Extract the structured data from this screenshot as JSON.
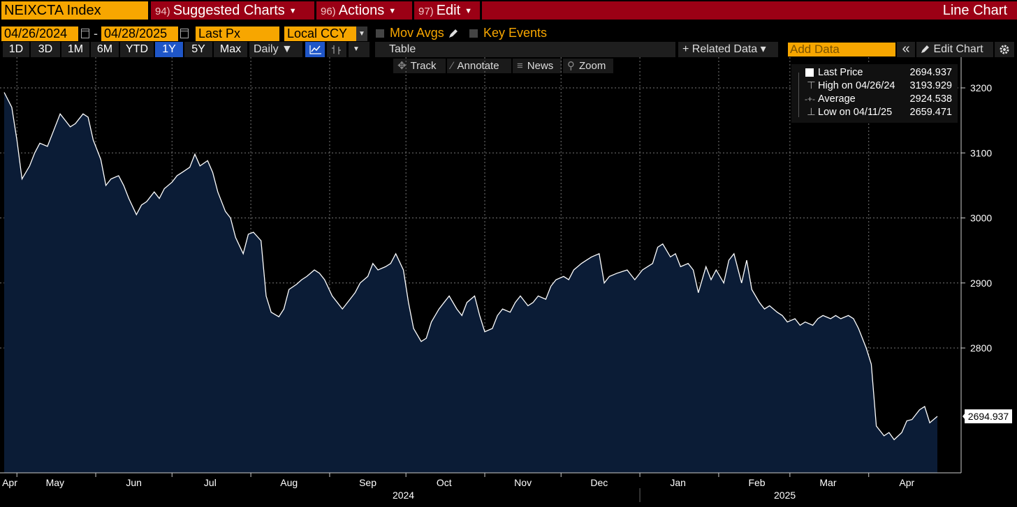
{
  "header": {
    "ticker": "NEIXCTA Index",
    "menus": [
      {
        "num": "94)",
        "label": "Suggested Charts"
      },
      {
        "num": "96)",
        "label": "Actions"
      },
      {
        "num": "97)",
        "label": "Edit"
      }
    ],
    "chart_mode": "Line Chart"
  },
  "controls": {
    "start_date": "04/26/2024",
    "end_date": "04/28/2025",
    "date_sep": "-",
    "field": "Last Px",
    "currency": "Local CCY",
    "mov_avgs": "Mov Avgs",
    "key_events": "Key Events"
  },
  "ranges": [
    "1D",
    "3D",
    "1M",
    "6M",
    "YTD",
    "1Y",
    "5Y",
    "Max"
  ],
  "selected_range": "1Y",
  "toolbar": {
    "frequency": "Daily ▼",
    "table": "Table",
    "related_data": "+ Related Data ▾",
    "add_data_placeholder": "Add Data",
    "collapse": "«",
    "edit_chart": "Edit Chart",
    "settings_icon": "gear-icon"
  },
  "chart_tools": [
    "Track",
    "Annotate",
    "News",
    "Zoom"
  ],
  "legend": {
    "last_price": {
      "label": "Last Price",
      "value": "2694.937"
    },
    "high": {
      "label": "High on 04/26/24",
      "value": "3193.929"
    },
    "average": {
      "label": "Average",
      "value": "2924.538"
    },
    "low": {
      "label": "Low on 04/11/25",
      "value": "2659.471"
    }
  },
  "last_value_label": "2694.937",
  "colors": {
    "ticker_bg": "#f7a600",
    "menu_bg": "#9b0015",
    "area_fill": "#0b1c36",
    "line": "#ffffff",
    "selected": "#1f56c8"
  },
  "chart_data": {
    "type": "area",
    "title": "",
    "xlabel": "",
    "ylabel": "",
    "ylim": [
      2630,
      3240
    ],
    "yticks": [
      2800,
      2900,
      3000,
      3100,
      3200
    ],
    "xlim": [
      "2024-04-26",
      "2025-04-28"
    ],
    "month_labels": [
      "Apr",
      "May",
      "Jun",
      "Jul",
      "Aug",
      "Sep",
      "Oct",
      "Nov",
      "Dec",
      "Jan",
      "Feb",
      "Mar",
      "Apr"
    ],
    "month_dates": [
      "2024-04-26",
      "2024-05-16",
      "2024-06-16",
      "2024-07-16",
      "2024-08-16",
      "2024-09-16",
      "2024-10-16",
      "2024-11-16",
      "2024-12-16",
      "2025-01-16",
      "2025-02-16",
      "2025-03-16",
      "2025-04-16"
    ],
    "year_labels": [
      {
        "label": "2024",
        "date": "2024-09-30"
      },
      {
        "label": "2025",
        "date": "2025-02-27"
      }
    ],
    "grid": true,
    "series": [
      {
        "values": [
          [
            "2024-04-26",
            3193
          ],
          [
            "2024-04-29",
            3170
          ],
          [
            "2024-05-01",
            3120
          ],
          [
            "2024-05-03",
            3060
          ],
          [
            "2024-05-06",
            3080
          ],
          [
            "2024-05-08",
            3100
          ],
          [
            "2024-05-10",
            3115
          ],
          [
            "2024-05-13",
            3110
          ],
          [
            "2024-05-15",
            3130
          ],
          [
            "2024-05-18",
            3160
          ],
          [
            "2024-05-20",
            3150
          ],
          [
            "2024-05-22",
            3140
          ],
          [
            "2024-05-24",
            3145
          ],
          [
            "2024-05-27",
            3160
          ],
          [
            "2024-05-29",
            3155
          ],
          [
            "2024-05-31",
            3120
          ],
          [
            "2024-06-03",
            3090
          ],
          [
            "2024-06-05",
            3050
          ],
          [
            "2024-06-07",
            3060
          ],
          [
            "2024-06-10",
            3065
          ],
          [
            "2024-06-12",
            3050
          ],
          [
            "2024-06-14",
            3030
          ],
          [
            "2024-06-17",
            3005
          ],
          [
            "2024-06-19",
            3020
          ],
          [
            "2024-06-21",
            3025
          ],
          [
            "2024-06-24",
            3040
          ],
          [
            "2024-06-26",
            3030
          ],
          [
            "2024-06-28",
            3045
          ],
          [
            "2024-07-01",
            3055
          ],
          [
            "2024-07-03",
            3065
          ],
          [
            "2024-07-05",
            3070
          ],
          [
            "2024-07-08",
            3078
          ],
          [
            "2024-07-10",
            3098
          ],
          [
            "2024-07-12",
            3080
          ],
          [
            "2024-07-15",
            3088
          ],
          [
            "2024-07-17",
            3070
          ],
          [
            "2024-07-19",
            3040
          ],
          [
            "2024-07-22",
            3010
          ],
          [
            "2024-07-24",
            3000
          ],
          [
            "2024-07-26",
            2970
          ],
          [
            "2024-07-29",
            2945
          ],
          [
            "2024-07-31",
            2975
          ],
          [
            "2024-08-02",
            2978
          ],
          [
            "2024-08-05",
            2965
          ],
          [
            "2024-08-07",
            2880
          ],
          [
            "2024-08-09",
            2855
          ],
          [
            "2024-08-12",
            2848
          ],
          [
            "2024-08-14",
            2860
          ],
          [
            "2024-08-16",
            2890
          ],
          [
            "2024-08-19",
            2898
          ],
          [
            "2024-08-21",
            2905
          ],
          [
            "2024-08-23",
            2910
          ],
          [
            "2024-08-26",
            2920
          ],
          [
            "2024-08-28",
            2915
          ],
          [
            "2024-08-30",
            2905
          ],
          [
            "2024-09-02",
            2880
          ],
          [
            "2024-09-04",
            2870
          ],
          [
            "2024-09-06",
            2860
          ],
          [
            "2024-09-09",
            2875
          ],
          [
            "2024-09-11",
            2885
          ],
          [
            "2024-09-13",
            2900
          ],
          [
            "2024-09-16",
            2910
          ],
          [
            "2024-09-18",
            2930
          ],
          [
            "2024-09-20",
            2920
          ],
          [
            "2024-09-23",
            2925
          ],
          [
            "2024-09-25",
            2930
          ],
          [
            "2024-09-27",
            2945
          ],
          [
            "2024-09-30",
            2920
          ],
          [
            "2024-10-02",
            2870
          ],
          [
            "2024-10-04",
            2830
          ],
          [
            "2024-10-07",
            2810
          ],
          [
            "2024-10-09",
            2815
          ],
          [
            "2024-10-11",
            2840
          ],
          [
            "2024-10-14",
            2860
          ],
          [
            "2024-10-16",
            2870
          ],
          [
            "2024-10-18",
            2880
          ],
          [
            "2024-10-21",
            2860
          ],
          [
            "2024-10-23",
            2850
          ],
          [
            "2024-10-25",
            2870
          ],
          [
            "2024-10-28",
            2880
          ],
          [
            "2024-10-30",
            2850
          ],
          [
            "2024-11-01",
            2825
          ],
          [
            "2024-11-04",
            2830
          ],
          [
            "2024-11-06",
            2850
          ],
          [
            "2024-11-08",
            2860
          ],
          [
            "2024-11-11",
            2855
          ],
          [
            "2024-11-13",
            2870
          ],
          [
            "2024-11-15",
            2880
          ],
          [
            "2024-11-18",
            2865
          ],
          [
            "2024-11-20",
            2870
          ],
          [
            "2024-11-22",
            2880
          ],
          [
            "2024-11-25",
            2875
          ],
          [
            "2024-11-27",
            2895
          ],
          [
            "2024-11-29",
            2905
          ],
          [
            "2024-12-02",
            2910
          ],
          [
            "2024-12-04",
            2905
          ],
          [
            "2024-12-06",
            2920
          ],
          [
            "2024-12-09",
            2930
          ],
          [
            "2024-12-11",
            2935
          ],
          [
            "2024-12-13",
            2940
          ],
          [
            "2024-12-16",
            2945
          ],
          [
            "2024-12-18",
            2900
          ],
          [
            "2024-12-20",
            2910
          ],
          [
            "2024-12-23",
            2915
          ],
          [
            "2024-12-27",
            2920
          ],
          [
            "2024-12-30",
            2905
          ],
          [
            "2025-01-02",
            2920
          ],
          [
            "2025-01-06",
            2930
          ],
          [
            "2025-01-08",
            2955
          ],
          [
            "2025-01-10",
            2960
          ],
          [
            "2025-01-13",
            2940
          ],
          [
            "2025-01-15",
            2945
          ],
          [
            "2025-01-17",
            2925
          ],
          [
            "2025-01-20",
            2930
          ],
          [
            "2025-01-22",
            2920
          ],
          [
            "2025-01-24",
            2885
          ],
          [
            "2025-01-27",
            2925
          ],
          [
            "2025-01-29",
            2905
          ],
          [
            "2025-01-31",
            2920
          ],
          [
            "2025-02-03",
            2900
          ],
          [
            "2025-02-05",
            2935
          ],
          [
            "2025-02-07",
            2945
          ],
          [
            "2025-02-10",
            2900
          ],
          [
            "2025-02-12",
            2935
          ],
          [
            "2025-02-14",
            2890
          ],
          [
            "2025-02-17",
            2870
          ],
          [
            "2025-02-19",
            2860
          ],
          [
            "2025-02-21",
            2865
          ],
          [
            "2025-02-24",
            2855
          ],
          [
            "2025-02-26",
            2850
          ],
          [
            "2025-02-28",
            2840
          ],
          [
            "2025-03-03",
            2845
          ],
          [
            "2025-03-05",
            2835
          ],
          [
            "2025-03-07",
            2840
          ],
          [
            "2025-03-10",
            2835
          ],
          [
            "2025-03-12",
            2845
          ],
          [
            "2025-03-14",
            2850
          ],
          [
            "2025-03-17",
            2845
          ],
          [
            "2025-03-19",
            2850
          ],
          [
            "2025-03-21",
            2845
          ],
          [
            "2025-03-24",
            2850
          ],
          [
            "2025-03-26",
            2845
          ],
          [
            "2025-03-28",
            2830
          ],
          [
            "2025-03-31",
            2800
          ],
          [
            "2025-04-02",
            2775
          ],
          [
            "2025-04-04",
            2680
          ],
          [
            "2025-04-07",
            2665
          ],
          [
            "2025-04-09",
            2670
          ],
          [
            "2025-04-11",
            2659
          ],
          [
            "2025-04-14",
            2670
          ],
          [
            "2025-04-16",
            2688
          ],
          [
            "2025-04-18",
            2690
          ],
          [
            "2025-04-21",
            2705
          ],
          [
            "2025-04-23",
            2710
          ],
          [
            "2025-04-25",
            2685
          ],
          [
            "2025-04-28",
            2694.937
          ]
        ]
      }
    ]
  }
}
